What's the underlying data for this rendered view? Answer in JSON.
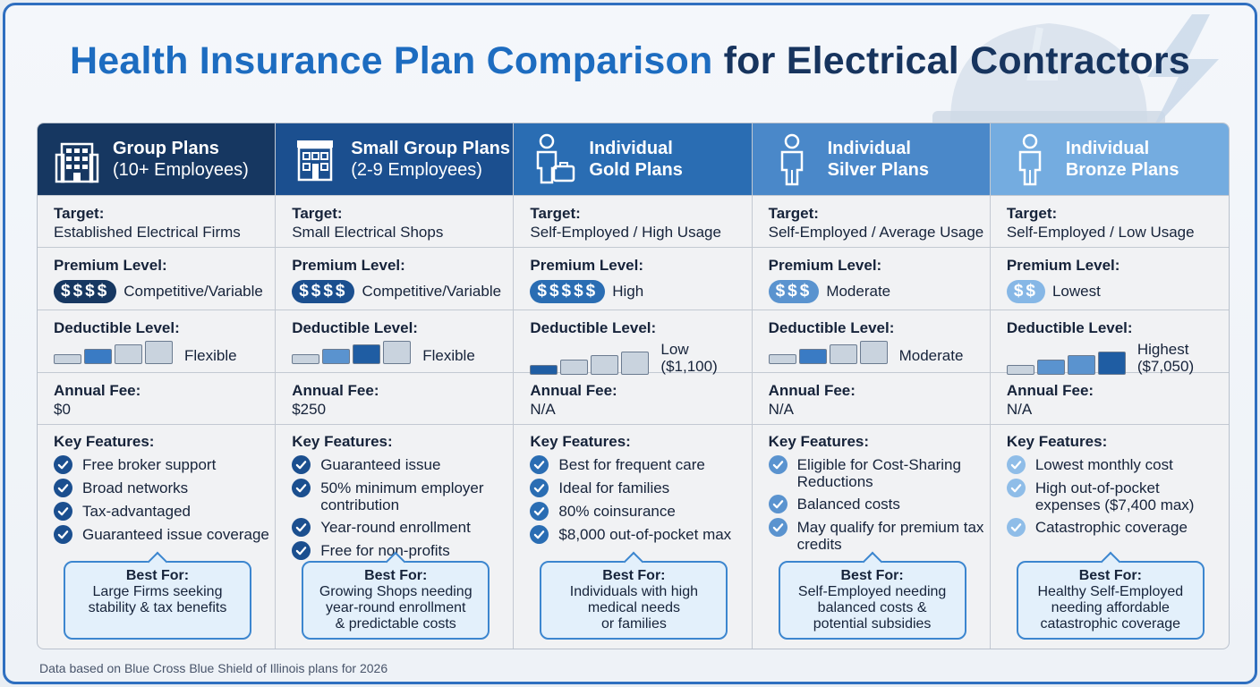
{
  "title": {
    "part1": "Health Insurance Plan Comparison",
    "part2": "for Electrical Contractors"
  },
  "labels": {
    "target": "Target:",
    "premium": "Premium Level:",
    "deductible": "Deductible Level:",
    "fee": "Annual Fee:",
    "features": "Key Features:",
    "best_for": "Best For:"
  },
  "colors": {
    "check_dark": "#1b4f8f",
    "check_mid": "#3a7bc4",
    "check_light": "#8fbde8",
    "bar_empty": "#c9d3de"
  },
  "plans": [
    {
      "title": "Group Plans",
      "subtitle": "(10+ Employees)",
      "icon": "office-building-icon",
      "target": "Established Electrical Firms",
      "premium_symbol": "$$$$",
      "premium_text": "Competitive/Variable",
      "deductible_level": 0,
      "deductible_text": "Flexible",
      "deductible_bar_colors": [
        "#c9d3de",
        "#3a7bc4",
        "#c9d3de",
        "#c9d3de"
      ],
      "fee": "$0",
      "features": [
        "Free broker support",
        "Broad networks",
        "Tax-advantaged",
        "Guaranteed issue coverage"
      ],
      "best_for": "Large Firms seeking\nstability & tax benefits"
    },
    {
      "title": "Small Group Plans",
      "subtitle": "(2-9 Employees)",
      "icon": "storefront-icon",
      "target": "Small Electrical Shops",
      "premium_symbol": "$$$$",
      "premium_text": "Competitive/Variable",
      "deductible_level": 0,
      "deductible_text": "Flexible",
      "deductible_bar_colors": [
        "#c9d3de",
        "#5a93cf",
        "#1f5da3",
        "#c9d3de"
      ],
      "fee": "$250",
      "features": [
        "Guaranteed issue",
        "50% minimum employer contribution",
        "Year-round enrollment",
        "Free for non-profits"
      ],
      "best_for": "Growing Shops needing\nyear-round enrollment\n& predictable costs"
    },
    {
      "title": "Individual",
      "subtitle": "Gold Plans",
      "icon": "person-briefcase-icon",
      "target": "Self-Employed / High Usage",
      "premium_symbol": "$$$$$",
      "premium_text": "High",
      "deductible_level": 1,
      "deductible_text": "Low\n($1,100)",
      "deductible_bar_colors": [
        "#1f5da3",
        "#c9d3de",
        "#c9d3de",
        "#c9d3de"
      ],
      "fee": "N/A",
      "features": [
        "Best for frequent care",
        "Ideal for families",
        "80% coinsurance",
        "$8,000 out-of-pocket max"
      ],
      "best_for": "Individuals with high\nmedical needs\nor families"
    },
    {
      "title": "Individual",
      "subtitle": "Silver Plans",
      "icon": "person-icon",
      "target": "Self-Employed / Average Usage",
      "premium_symbol": "$$$",
      "premium_text": "Moderate",
      "deductible_level": 2,
      "deductible_text": "Moderate",
      "deductible_bar_colors": [
        "#c9d3de",
        "#3a7bc4",
        "#c9d3de",
        "#c9d3de"
      ],
      "fee": "N/A",
      "features": [
        "Eligible for Cost-Sharing Reductions",
        "Balanced costs",
        "May qualify for premium tax credits"
      ],
      "best_for": "Self-Employed needing\nbalanced costs &\npotential subsidies"
    },
    {
      "title": "Individual",
      "subtitle": "Bronze Plans",
      "icon": "person-icon",
      "target": "Self-Employed / Low Usage",
      "premium_symbol": "$$",
      "premium_text": "Lowest",
      "deductible_level": 4,
      "deductible_text": "Highest\n($7,050)",
      "deductible_bar_colors": [
        "#c9d3de",
        "#5a93cf",
        "#5a93cf",
        "#1f5da3"
      ],
      "fee": "N/A",
      "features": [
        "Lowest monthly cost",
        "High out-of-pocket expenses ($7,400 max)",
        "Catastrophic coverage"
      ],
      "best_for": "Healthy Self-Employed\nneeding affordable\ncatastrophic coverage"
    }
  ],
  "footnote": "Data based on Blue Cross Blue Shield of Illinois plans for 2026"
}
